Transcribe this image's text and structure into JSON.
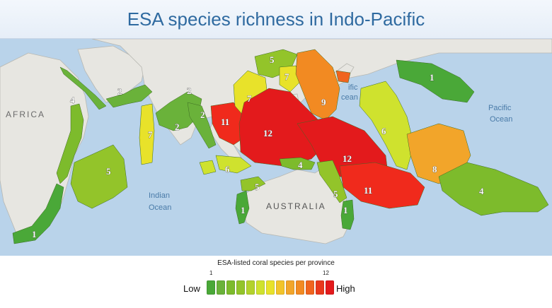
{
  "title": "ESA species richness in Indo-Pacific",
  "map": {
    "labels": {
      "africa": "AFRICA",
      "indian_ocean_1": "Indian",
      "indian_ocean_2": "Ocean",
      "pacific_ocean_1": "Pacific",
      "pacific_ocean_2": "Ocean",
      "pacific_partial_1": "ific",
      "pacific_partial_2": "cean",
      "australia": "AUSTRALIA"
    },
    "colors": {
      "ocean": "#b9d3ea",
      "land": "#e7e6e1",
      "coast": "#b8b8b2"
    },
    "regions": [
      {
        "name": "red-sea",
        "value": "2",
        "color": "#6ab23a"
      },
      {
        "name": "east-africa",
        "value": "4",
        "color": "#7dbb2c"
      },
      {
        "name": "south-africa",
        "value": "1",
        "color": "#4aa838"
      },
      {
        "name": "madagascar",
        "value": "5",
        "color": "#93c42a"
      },
      {
        "name": "arabian-sea",
        "value": "2",
        "color": "#6ab23a"
      },
      {
        "name": "maldives",
        "value": "7",
        "color": "#e8e22a"
      },
      {
        "name": "bay-of-bengal",
        "value": "2",
        "color": "#6ab23a"
      },
      {
        "name": "andaman",
        "value": "2",
        "color": "#6ab23a"
      },
      {
        "name": "cocos-java",
        "value": "6",
        "color": "#cfe22e"
      },
      {
        "name": "south-china-sea-west",
        "value": "11",
        "color": "#f02a1c"
      },
      {
        "name": "south-china-coast",
        "value": "5",
        "color": "#93c42a"
      },
      {
        "name": "gulf-tonkin",
        "value": "7",
        "color": "#e8e22a"
      },
      {
        "name": "south-china-sea",
        "value": "7",
        "color": "#e8e22a"
      },
      {
        "name": "coral-triangle",
        "value": "12",
        "color": "#e31a1c"
      },
      {
        "name": "japan",
        "value": "9",
        "color": "#f28a22"
      },
      {
        "name": "micronesia",
        "value": "6",
        "color": "#cfe22e"
      },
      {
        "name": "hawaii",
        "value": "1",
        "color": "#4aa838"
      },
      {
        "name": "west-australia",
        "value": "1",
        "color": "#4aa838"
      },
      {
        "name": "nw-australia",
        "value": "5",
        "color": "#93c42a"
      },
      {
        "name": "timor-arafura",
        "value": "4",
        "color": "#7dbb2c"
      },
      {
        "name": "gulf-carpentaria",
        "value": "5",
        "color": "#93c42a"
      },
      {
        "name": "east-australia",
        "value": "1",
        "color": "#4aa838"
      },
      {
        "name": "melanesia",
        "value": "12",
        "color": "#e31a1c"
      },
      {
        "name": "solomon-vanuatu",
        "value": "11",
        "color": "#f02a1c"
      },
      {
        "name": "fiji-line",
        "value": "8",
        "color": "#f2a52a"
      },
      {
        "name": "polynesia",
        "value": "4",
        "color": "#7dbb2c"
      }
    ]
  },
  "legend": {
    "title": "ESA-listed coral species per province",
    "min": "1",
    "max": "12",
    "low": "Low",
    "high": "High",
    "colors": [
      "#4aa838",
      "#6ab23a",
      "#7dbb2c",
      "#93c42a",
      "#b3d22c",
      "#cfe22e",
      "#e8e22a",
      "#f2c42a",
      "#f2a52a",
      "#f28a22",
      "#f0641e",
      "#e9381c",
      "#e31a1c"
    ]
  }
}
